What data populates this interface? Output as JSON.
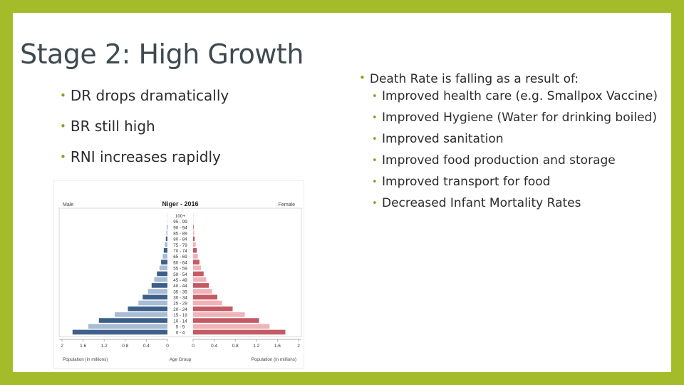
{
  "slide": {
    "title": "Stage 2: High Growth",
    "left_bullets": [
      "DR drops dramatically",
      "BR still high",
      "RNI increases rapidly"
    ],
    "right_main": "Death Rate is falling as a result of:",
    "right_sub_bullets": [
      "Improved health care (e.g. Smallpox Vaccine)",
      "Improved Hygiene (Water for drinking boiled)",
      "Improved sanitation",
      "Improved food production and storage",
      "Improved transport for food",
      "Decreased Infant Mortality Rates"
    ],
    "bullet_color": "#8aa022",
    "frame_color": "#a4bb2a"
  },
  "chart_data": {
    "type": "bar",
    "title": "Niger - 2016",
    "left_label": "Male",
    "right_label": "Female",
    "center_axis_label": "Age Group",
    "xlabel_left": "Population (in millions)",
    "xlabel_right": "Population (in millions)",
    "categories": [
      "0 - 4",
      "5 - 9",
      "10 - 14",
      "15 - 19",
      "20 - 24",
      "25 - 29",
      "30 - 34",
      "35 - 39",
      "40 - 44",
      "45 - 49",
      "50 - 54",
      "55 - 59",
      "60 - 64",
      "65 - 69",
      "70 - 74",
      "75 - 79",
      "80 - 84",
      "85 - 89",
      "90 - 94",
      "95 - 99",
      "100+"
    ],
    "series": [
      {
        "name": "Male",
        "color_dark": "#3d5f8a",
        "color_light": "#a7bcd5",
        "values": [
          1.8,
          1.5,
          1.3,
          1.0,
          0.75,
          0.55,
          0.47,
          0.37,
          0.3,
          0.25,
          0.2,
          0.15,
          0.12,
          0.09,
          0.07,
          0.05,
          0.03,
          0.02,
          0.01,
          0.005,
          0.002
        ]
      },
      {
        "name": "Female",
        "color_dark": "#c45a63",
        "color_light": "#f0b3b8",
        "values": [
          1.75,
          1.45,
          1.25,
          0.98,
          0.75,
          0.55,
          0.46,
          0.36,
          0.3,
          0.25,
          0.2,
          0.15,
          0.12,
          0.09,
          0.07,
          0.05,
          0.03,
          0.02,
          0.01,
          0.005,
          0.002
        ]
      }
    ],
    "x_ticks_left": [
      "2",
      "1.6",
      "1.2",
      "0.8",
      "0.4",
      "0"
    ],
    "x_ticks_right": [
      "0",
      "0.4",
      "0.8",
      "1.2",
      "1.6",
      "2"
    ],
    "xlim": [
      0,
      2
    ]
  }
}
